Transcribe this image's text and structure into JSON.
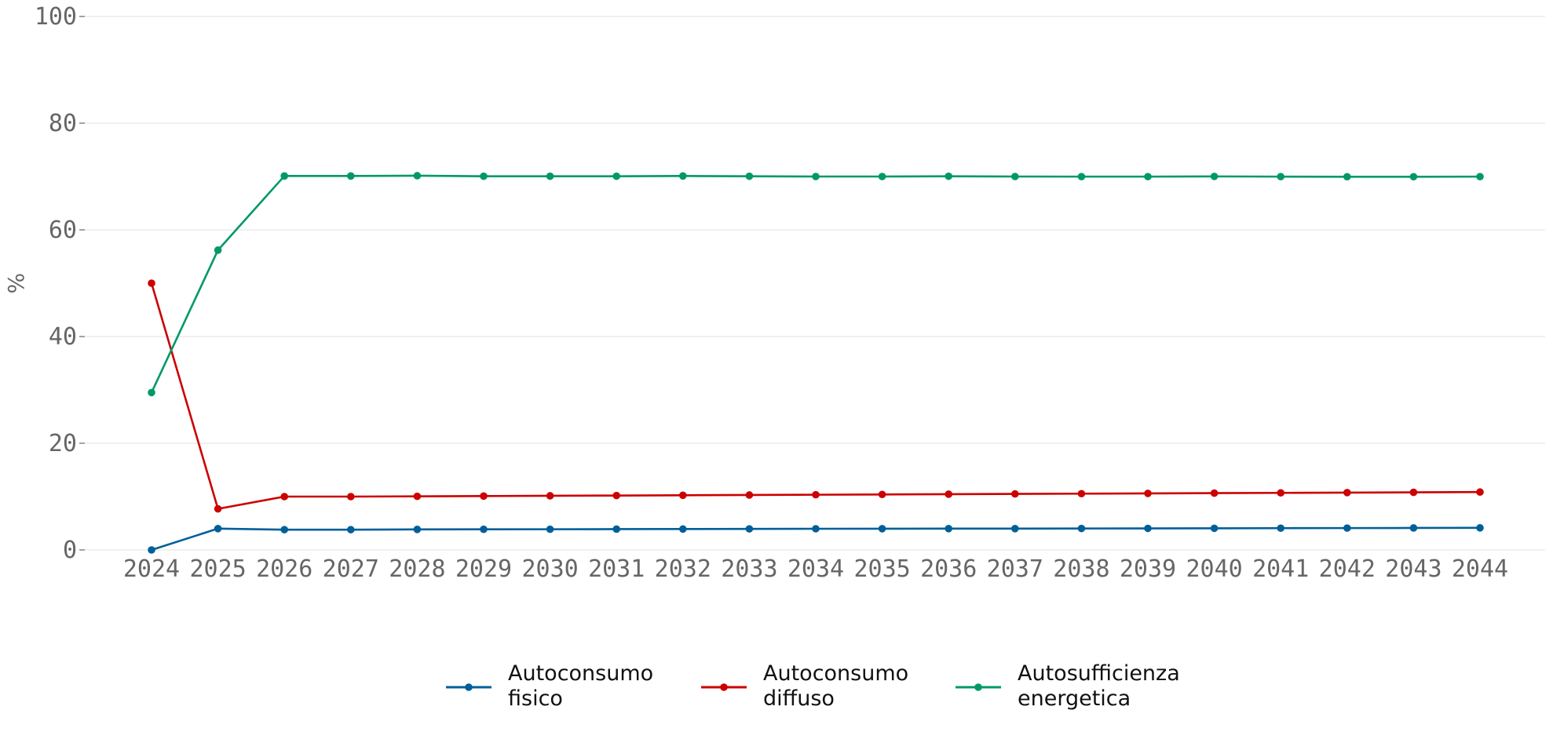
{
  "chart_data": {
    "type": "line",
    "title": "",
    "xlabel": "",
    "ylabel": "%",
    "ylim": [
      0,
      100
    ],
    "yticks": [
      0,
      20,
      40,
      60,
      80,
      100
    ],
    "grid": "horizontal",
    "legend_position": "bottom-center",
    "x": [
      "2024",
      "2025",
      "2026",
      "2027",
      "2028",
      "2029",
      "2030",
      "2031",
      "2032",
      "2033",
      "2034",
      "2035",
      "2036",
      "2037",
      "2038",
      "2039",
      "2040",
      "2041",
      "2042",
      "2043",
      "2044"
    ],
    "series": [
      {
        "name": "Autoconsumo fisico",
        "name_lines": [
          "Autoconsumo",
          "fisico"
        ],
        "color": "#005f99",
        "values": [
          0.0,
          4.0,
          3.8,
          3.8,
          3.85,
          3.87,
          3.88,
          3.9,
          3.92,
          3.95,
          3.97,
          3.98,
          4.0,
          4.0,
          4.02,
          4.04,
          4.06,
          4.08,
          4.1,
          4.12,
          4.14
        ]
      },
      {
        "name": "Autoconsumo diffuso",
        "name_lines": [
          "Autoconsumo",
          "diffuso"
        ],
        "color": "#cc0000",
        "values": [
          50.0,
          7.7,
          10.0,
          10.0,
          10.05,
          10.1,
          10.15,
          10.2,
          10.25,
          10.3,
          10.35,
          10.4,
          10.45,
          10.5,
          10.55,
          10.6,
          10.65,
          10.7,
          10.75,
          10.8,
          10.85
        ]
      },
      {
        "name": "Autosufficienza energetica",
        "name_lines": [
          "Autosufficienza",
          "energetica"
        ],
        "color": "#009966",
        "values": [
          29.5,
          56.2,
          70.1,
          70.1,
          70.15,
          70.05,
          70.05,
          70.05,
          70.1,
          70.05,
          70.0,
          70.0,
          70.05,
          70.0,
          69.98,
          69.98,
          70.02,
          69.98,
          69.96,
          69.96,
          69.98
        ]
      }
    ]
  }
}
